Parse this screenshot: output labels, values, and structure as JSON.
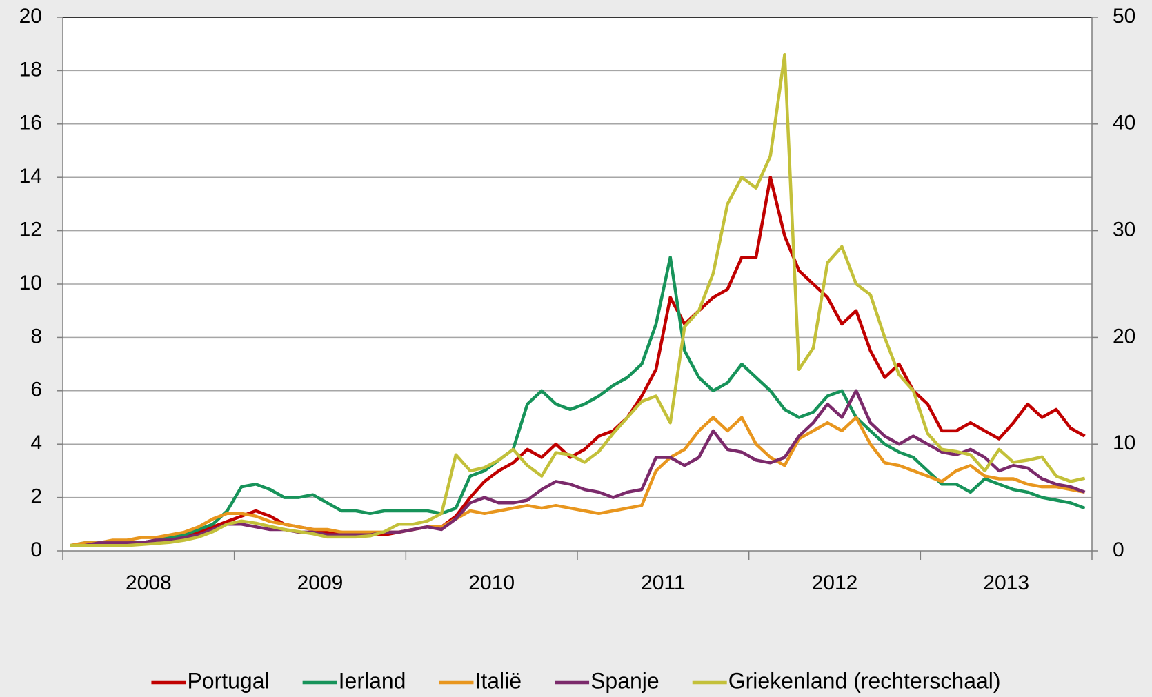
{
  "chart_data": {
    "type": "line",
    "categories": [
      null,
      null,
      null,
      null,
      null,
      null,
      "2008",
      null,
      null,
      null,
      null,
      null,
      null,
      null,
      null,
      null,
      null,
      null,
      "2009",
      null,
      null,
      null,
      null,
      null,
      null,
      null,
      null,
      null,
      null,
      null,
      "2010",
      null,
      null,
      null,
      null,
      null,
      null,
      null,
      null,
      null,
      null,
      null,
      "2011",
      null,
      null,
      null,
      null,
      null,
      null,
      null,
      null,
      null,
      null,
      null,
      "2012",
      null,
      null,
      null,
      null,
      null,
      null,
      null,
      null,
      null,
      null,
      null,
      "2013",
      null,
      null,
      null,
      null,
      null
    ],
    "series": [
      {
        "name": "Portugal",
        "color": "#c00000",
        "values": [
          0.2,
          0.2,
          0.3,
          0.3,
          0.3,
          0.3,
          0.4,
          0.4,
          0.5,
          0.7,
          0.9,
          1.1,
          1.3,
          1.5,
          1.3,
          1.0,
          0.9,
          0.8,
          0.7,
          0.7,
          0.6,
          0.6,
          0.6,
          0.7,
          0.8,
          0.9,
          0.9,
          1.3,
          2.0,
          2.6,
          3.0,
          3.3,
          3.8,
          3.5,
          4.0,
          3.5,
          3.8,
          4.3,
          4.5,
          5.0,
          5.8,
          6.8,
          9.5,
          8.5,
          9.0,
          9.5,
          9.8,
          11.0,
          11.0,
          14.0,
          11.8,
          10.5,
          10.0,
          9.5,
          8.5,
          9.0,
          7.5,
          6.5,
          7.0,
          6.0,
          5.5,
          4.5,
          4.5,
          4.8,
          4.5,
          4.2,
          4.8,
          5.5,
          5.0,
          5.3,
          4.6,
          4.3
        ]
      },
      {
        "name": "Ierland",
        "color": "#17935a",
        "values": [
          0.2,
          0.3,
          0.3,
          0.3,
          0.3,
          0.3,
          0.4,
          0.5,
          0.6,
          0.8,
          1.0,
          1.5,
          2.4,
          2.5,
          2.3,
          2.0,
          2.0,
          2.1,
          1.8,
          1.5,
          1.5,
          1.4,
          1.5,
          1.5,
          1.5,
          1.5,
          1.4,
          1.6,
          2.8,
          3.0,
          3.4,
          3.8,
          5.5,
          6.0,
          5.5,
          5.3,
          5.5,
          5.8,
          6.2,
          6.5,
          7.0,
          8.5,
          11.0,
          7.5,
          6.5,
          6.0,
          6.3,
          7.0,
          6.5,
          6.0,
          5.3,
          5.0,
          5.2,
          5.8,
          6.0,
          5.0,
          4.5,
          4.0,
          3.7,
          3.5,
          3.0,
          2.5,
          2.5,
          2.2,
          2.7,
          2.5,
          2.3,
          2.2,
          2.0,
          1.9,
          1.8,
          1.6
        ]
      },
      {
        "name": "Italië",
        "color": "#e8961e",
        "values": [
          0.2,
          0.3,
          0.3,
          0.4,
          0.4,
          0.5,
          0.5,
          0.6,
          0.7,
          0.9,
          1.2,
          1.4,
          1.4,
          1.3,
          1.1,
          1.0,
          0.9,
          0.8,
          0.8,
          0.7,
          0.7,
          0.7,
          0.7,
          0.7,
          0.8,
          0.9,
          0.9,
          1.2,
          1.5,
          1.4,
          1.5,
          1.6,
          1.7,
          1.6,
          1.7,
          1.6,
          1.5,
          1.4,
          1.5,
          1.6,
          1.7,
          3.0,
          3.5,
          3.8,
          4.5,
          5.0,
          4.5,
          5.0,
          4.0,
          3.5,
          3.2,
          4.2,
          4.5,
          4.8,
          4.5,
          5.0,
          4.0,
          3.3,
          3.2,
          3.0,
          2.8,
          2.6,
          3.0,
          3.2,
          2.8,
          2.7,
          2.7,
          2.5,
          2.4,
          2.4,
          2.3,
          2.2
        ]
      },
      {
        "name": "Spanje",
        "color": "#7b2a6b",
        "values": [
          0.2,
          0.2,
          0.3,
          0.3,
          0.3,
          0.3,
          0.4,
          0.4,
          0.5,
          0.6,
          0.8,
          1.0,
          1.0,
          0.9,
          0.8,
          0.8,
          0.7,
          0.7,
          0.6,
          0.6,
          0.6,
          0.6,
          0.7,
          0.7,
          0.8,
          0.9,
          0.8,
          1.2,
          1.8,
          2.0,
          1.8,
          1.8,
          1.9,
          2.3,
          2.6,
          2.5,
          2.3,
          2.2,
          2.0,
          2.2,
          2.3,
          3.5,
          3.5,
          3.2,
          3.5,
          4.5,
          3.8,
          3.7,
          3.4,
          3.3,
          3.5,
          4.3,
          4.8,
          5.5,
          5.0,
          6.0,
          4.8,
          4.3,
          4.0,
          4.3,
          4.0,
          3.7,
          3.6,
          3.8,
          3.5,
          3.0,
          3.2,
          3.1,
          2.7,
          2.5,
          2.4,
          2.2
        ]
      },
      {
        "name": "Griekenland (rechterschaal)",
        "color": "#c3c03a",
        "axis": "y2",
        "values": [
          0.5,
          0.5,
          0.5,
          0.5,
          0.5,
          0.6,
          0.7,
          0.8,
          1.0,
          1.3,
          1.8,
          2.5,
          2.8,
          2.6,
          2.3,
          2.0,
          1.8,
          1.6,
          1.3,
          1.3,
          1.3,
          1.4,
          1.8,
          2.5,
          2.5,
          2.8,
          3.5,
          9.0,
          7.5,
          7.8,
          8.5,
          9.5,
          8.0,
          7.0,
          9.2,
          9.0,
          8.3,
          9.3,
          11,
          12.5,
          14,
          14.5,
          12,
          21,
          22.5,
          26,
          32.5,
          35,
          34,
          37,
          46.5,
          17,
          19,
          27,
          28.5,
          25,
          24,
          20,
          16.5,
          15,
          11,
          9.5,
          9.3,
          9,
          7.5,
          9.5,
          8.3,
          8.5,
          8.8,
          7,
          6.5,
          6.8
        ]
      }
    ],
    "ylim": [
      0,
      20
    ],
    "yticks": [
      0,
      2,
      4,
      6,
      8,
      10,
      12,
      14,
      16,
      18,
      20
    ],
    "y2lim": [
      0,
      50
    ],
    "y2ticks": [
      0,
      10,
      20,
      30,
      40,
      50
    ],
    "grid": true,
    "legend": "bottom"
  }
}
